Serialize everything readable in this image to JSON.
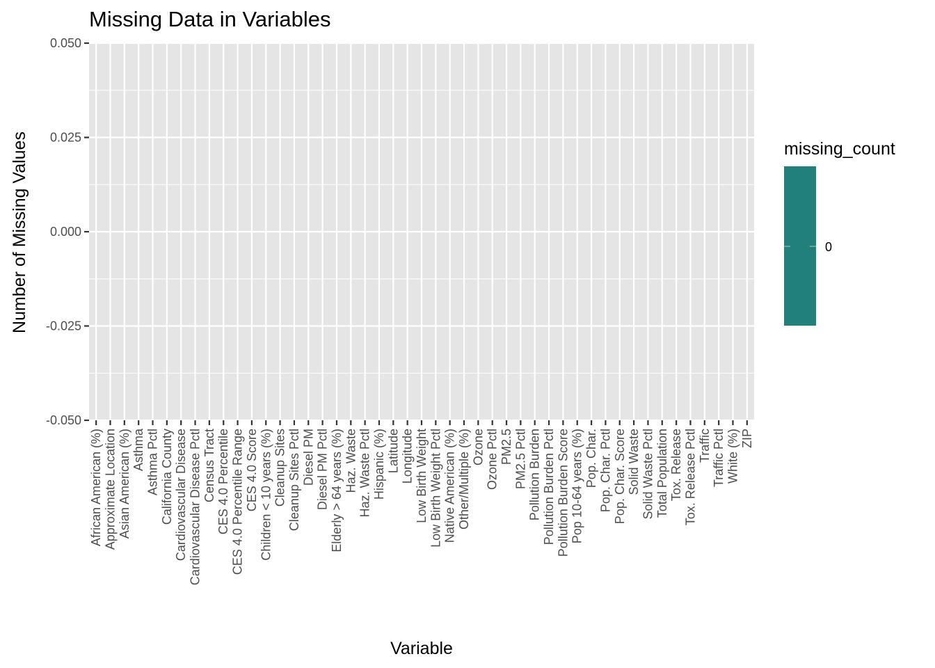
{
  "chart_data": {
    "type": "bar",
    "title": "Missing Data in Variables",
    "xlabel": "Variable",
    "ylabel": "Number of Missing Values",
    "ylim": [
      -0.05,
      0.05
    ],
    "yticks": [
      "0.050",
      "0.025",
      "0.000",
      "-0.025",
      "-0.050"
    ],
    "ytick_values": [
      0.05,
      0.025,
      0,
      -0.025,
      -0.05
    ],
    "grid": true,
    "background": "#e5e5e5",
    "categories": [
      "African American (%)",
      "Approximate Location",
      "Asian American (%)",
      "Asthma",
      "Asthma Pctl",
      "California County",
      "Cardiovascular Disease",
      "Cardiovascular Disease Pctl",
      "Census Tract",
      "CES 4.0 Percentile",
      "CES 4.0 Percentile Range",
      "CES 4.0 Score",
      "Children < 10 years (%)",
      "Cleanup Sites",
      "Cleanup Sites Pctl",
      "Diesel PM",
      "Diesel PM Pctl",
      "Elderly > 64 years (%)",
      "Haz. Waste",
      "Haz. Waste Pctl",
      "Hispanic (%)",
      "Latitude",
      "Longitude",
      "Low Birth Weight",
      "Low Birth Weight Pctl",
      "Native American (%)",
      "Other/Multiple (%)",
      "Ozone",
      "Ozone Pctl",
      "PM2.5",
      "PM2.5 Pctl",
      "Pollution Burden",
      "Pollution Burden Pctl",
      "Pollution Burden Score",
      "Pop 10-64 years (%)",
      "Pop. Char.",
      "Pop. Char. Pctl",
      "Pop. Char. Score",
      "Solid Waste",
      "Solid Waste Pctl",
      "Total Population",
      "Tox. Release",
      "Tox. Release Pctl",
      "Traffic",
      "Traffic Pctl",
      "White (%)",
      "ZIP"
    ],
    "values": [
      0,
      0,
      0,
      0,
      0,
      0,
      0,
      0,
      0,
      0,
      0,
      0,
      0,
      0,
      0,
      0,
      0,
      0,
      0,
      0,
      0,
      0,
      0,
      0,
      0,
      0,
      0,
      0,
      0,
      0,
      0,
      0,
      0,
      0,
      0,
      0,
      0,
      0,
      0,
      0,
      0,
      0,
      0,
      0,
      0,
      0,
      0
    ],
    "legend": {
      "title": "missing_count",
      "position": "right",
      "label": "0",
      "color": "#21807a"
    }
  }
}
